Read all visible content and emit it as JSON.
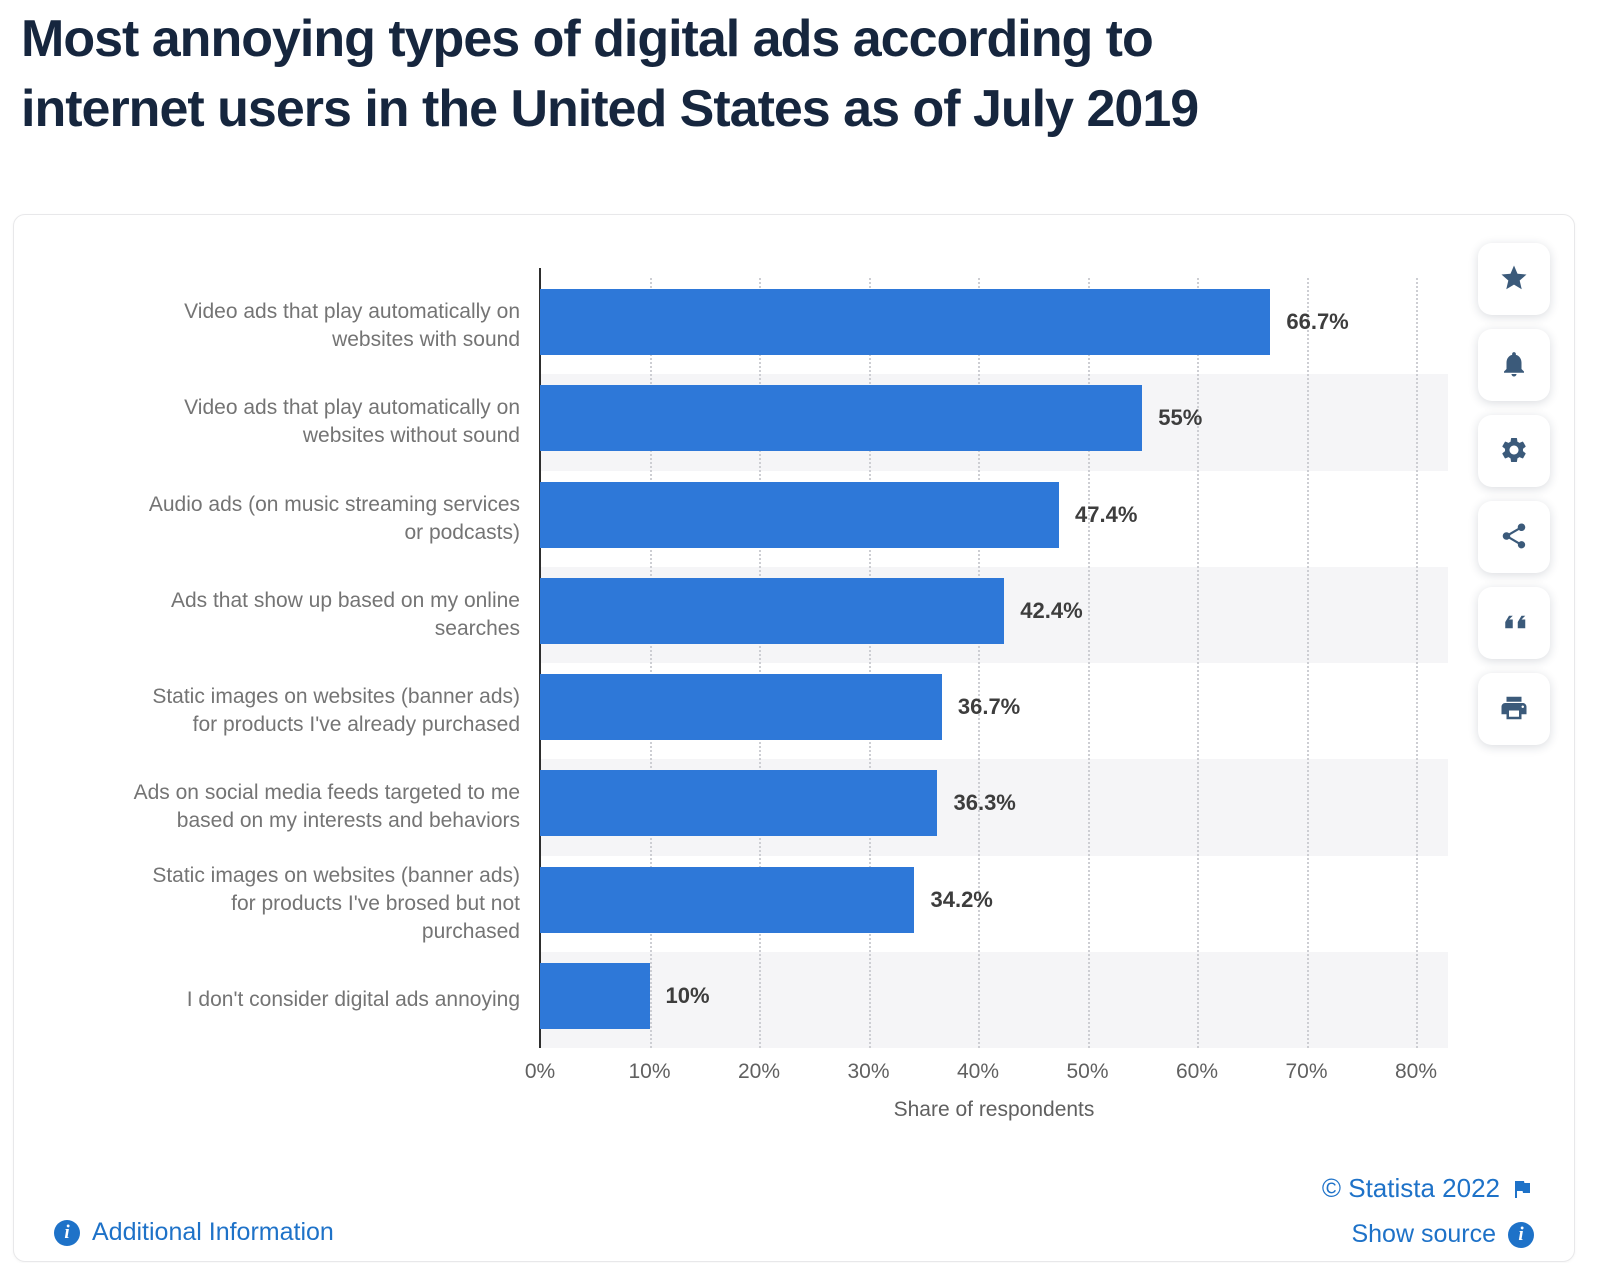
{
  "page_title": {
    "lines": [
      "Most annoying types of digital ads according to",
      "internet users in the United States as of July 2019"
    ]
  },
  "chart_data": {
    "type": "bar",
    "orientation": "horizontal",
    "title": "Most annoying types of digital ads according to internet users in the United States as of July 2019",
    "categories": [
      "Video ads that play automatically on websites with sound",
      "Video ads that play automatically on websites without sound",
      "Audio ads (on music streaming services or podcasts)",
      "Ads that show up based on my online searches",
      "Static images on websites (banner ads) for products I've already purchased",
      "Ads on social media feeds targeted to me based on my interests and behaviors",
      "Static images on websites (banner ads) for products I've brosed but not purchased",
      "I don't consider digital ads annoying"
    ],
    "category_display_lines": [
      [
        "Video ads that play automatically on",
        "websites with sound"
      ],
      [
        "Video ads that play automatically on",
        "websites without sound"
      ],
      [
        "Audio ads (on music streaming services",
        "or podcasts)"
      ],
      [
        "Ads that show up based on my online",
        "searches"
      ],
      [
        "Static images on websites (banner ads)",
        "for products I've already purchased"
      ],
      [
        "Ads on social media feeds targeted to me",
        "based on my interests and behaviors"
      ],
      [
        "Static images on websites (banner ads)",
        "for products I've brosed but not",
        "purchased"
      ],
      [
        "I don't consider digital ads annoying"
      ]
    ],
    "values": [
      66.7,
      55,
      47.4,
      42.4,
      36.7,
      36.3,
      34.2,
      10
    ],
    "value_labels": [
      "66.7%",
      "55%",
      "47.4%",
      "42.4%",
      "36.7%",
      "36.3%",
      "34.2%",
      "10%"
    ],
    "xlabel": "Share of respondents",
    "x_ticks": [
      "0%",
      "10%",
      "20%",
      "30%",
      "40%",
      "50%",
      "60%",
      "70%",
      "80%"
    ],
    "xlim": [
      0,
      80
    ],
    "legend": "none",
    "grid": "vertical-dotted",
    "bar_color": "#2e78d8",
    "zebra_band_color": "#f5f5f7"
  },
  "toolbar": {
    "buttons": [
      {
        "name": "favorite",
        "icon": "star-icon"
      },
      {
        "name": "alerts",
        "icon": "bell-icon"
      },
      {
        "name": "settings",
        "icon": "gear-icon"
      },
      {
        "name": "share",
        "icon": "share-icon"
      },
      {
        "name": "cite",
        "icon": "quote-icon"
      },
      {
        "name": "print",
        "icon": "printer-icon"
      }
    ]
  },
  "footer": {
    "additional_information_label": "Additional Information",
    "copyright_label": "© Statista 2022",
    "show_source_label": "Show source"
  },
  "colors": {
    "title_navy": "#16263e",
    "bar_blue": "#2e78d8",
    "link_blue": "#1e72c8",
    "icon_navy": "#3b5a7a",
    "band_gray": "#f5f5f7"
  }
}
